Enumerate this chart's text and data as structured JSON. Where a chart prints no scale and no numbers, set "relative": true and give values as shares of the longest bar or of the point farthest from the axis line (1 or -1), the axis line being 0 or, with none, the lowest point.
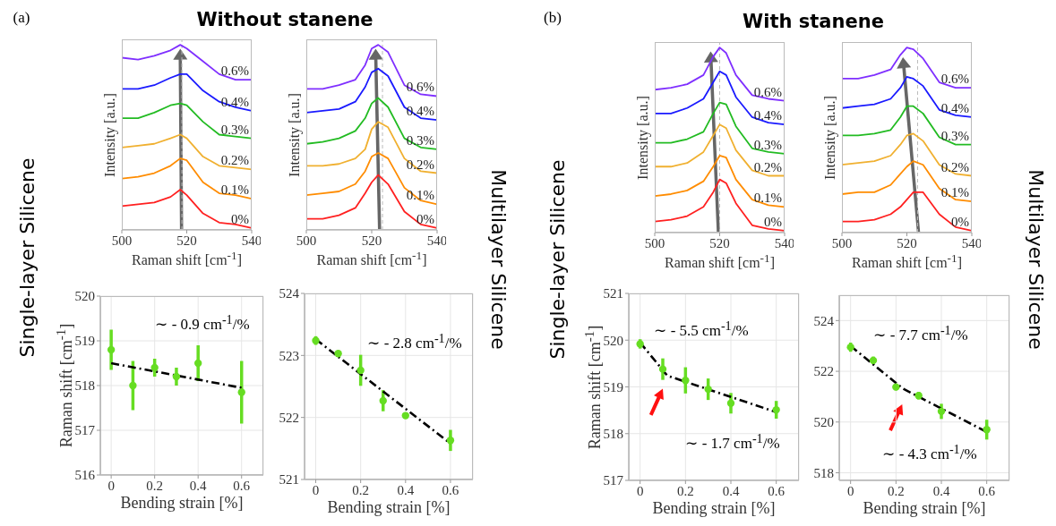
{
  "chart_data": [
    {
      "type": "line",
      "title": "Without stanene",
      "annotations": [
        "(a)"
      ],
      "xlabel": "Raman shift [cm$^{-1}$]",
      "ylabel": "Intensity [a.u.]",
      "relative": true,
      "xlim": [
        500,
        540
      ],
      "xticks": [
        500,
        520,
        540
      ],
      "x": [
        500,
        505,
        510,
        515,
        518,
        520,
        525,
        530,
        535,
        540
      ],
      "ref_lines": [
        {
          "axis": "x",
          "value": 518.5,
          "color": "#bbbbbb",
          "line_style": "dashed"
        }
      ],
      "series": [
        {
          "name": "0%",
          "color": "#ff2020",
          "values": [
            0.12,
            0.13,
            0.14,
            0.17,
            0.21,
            0.18,
            0.08,
            0.03,
            0.02,
            0
          ]
        },
        {
          "name": "0.1%",
          "color": "#ff8c00",
          "values": [
            0.27,
            0.28,
            0.3,
            0.34,
            0.38,
            0.37,
            0.25,
            0.19,
            0.18,
            0.16
          ]
        },
        {
          "name": "0.2%",
          "color": "#f0b030",
          "values": [
            0.44,
            0.45,
            0.46,
            0.49,
            0.51,
            0.49,
            0.39,
            0.34,
            0.33,
            0.32
          ]
        },
        {
          "name": "0.3%",
          "color": "#22bb22",
          "values": [
            0.6,
            0.6,
            0.63,
            0.67,
            0.68,
            0.67,
            0.58,
            0.51,
            0.5,
            0.49
          ]
        },
        {
          "name": "0.4%",
          "color": "#1a1aff",
          "values": [
            0.76,
            0.76,
            0.78,
            0.82,
            0.84,
            0.84,
            0.75,
            0.69,
            0.66,
            0.64
          ]
        },
        {
          "name": "0.6%",
          "color": "#7f2fff",
          "values": [
            0.93,
            0.92,
            0.94,
            0.97,
            1.0,
            0.98,
            0.91,
            0.84,
            0.81,
            0.81
          ]
        }
      ]
    },
    {
      "type": "line",
      "xlabel": "Raman shift [cm$^{-1}$]",
      "ylabel": "Intensity [a.u.]",
      "relative": true,
      "xlim": [
        500,
        540
      ],
      "xticks": [
        500,
        520,
        540
      ],
      "x": [
        500,
        505,
        510,
        515,
        518,
        520,
        522,
        525,
        530,
        535,
        540
      ],
      "ref_lines": [
        {
          "axis": "x",
          "value": 523.3,
          "color": "#bbbbbb",
          "line_style": "dashed"
        }
      ],
      "series": [
        {
          "name": "0%",
          "color": "#ff2020",
          "values": [
            0.05,
            0.05,
            0.07,
            0.11,
            0.19,
            0.25,
            0.29,
            0.24,
            0.09,
            0.02,
            0.0
          ]
        },
        {
          "name": "0.1%",
          "color": "#ff8c00",
          "values": [
            0.18,
            0.19,
            0.2,
            0.24,
            0.31,
            0.39,
            0.41,
            0.38,
            0.22,
            0.15,
            0.13
          ]
        },
        {
          "name": "0.2%",
          "color": "#f0b030",
          "values": [
            0.34,
            0.34,
            0.35,
            0.38,
            0.43,
            0.54,
            0.58,
            0.55,
            0.38,
            0.31,
            0.3
          ]
        },
        {
          "name": "0.3%",
          "color": "#22bb22",
          "values": [
            0.46,
            0.47,
            0.49,
            0.53,
            0.6,
            0.68,
            0.71,
            0.66,
            0.49,
            0.44,
            0.43
          ]
        },
        {
          "name": "0.4%",
          "color": "#1a1aff",
          "values": [
            0.63,
            0.64,
            0.65,
            0.69,
            0.77,
            0.85,
            0.87,
            0.83,
            0.66,
            0.6,
            0.59
          ]
        },
        {
          "name": "0.6%",
          "color": "#7f2fff",
          "values": [
            0.76,
            0.76,
            0.78,
            0.81,
            0.89,
            0.98,
            1.0,
            0.96,
            0.78,
            0.73,
            0.72
          ]
        }
      ]
    },
    {
      "type": "line",
      "title": "With stanene",
      "annotations": [
        "(b)"
      ],
      "xlabel": "Raman shift [cm$^{-1}$]",
      "ylabel": "Intensity [a.u.]",
      "relative": true,
      "xlim": [
        500,
        540
      ],
      "xticks": [
        500,
        520,
        540
      ],
      "x": [
        500,
        505,
        510,
        515,
        518,
        520,
        522,
        525,
        530,
        535,
        540
      ],
      "ref_lines": [
        {
          "axis": "x",
          "value": 520,
          "color": "#bbbbbb",
          "line_style": "dashed"
        }
      ],
      "series": [
        {
          "name": "0%",
          "color": "#ff2020",
          "values": [
            0.05,
            0.06,
            0.08,
            0.13,
            0.21,
            0.28,
            0.26,
            0.15,
            0.03,
            0.01,
            0
          ]
        },
        {
          "name": "0.1%",
          "color": "#ff8c00",
          "values": [
            0.19,
            0.2,
            0.22,
            0.27,
            0.35,
            0.41,
            0.4,
            0.28,
            0.17,
            0.14,
            0.13
          ]
        },
        {
          "name": "0.2%",
          "color": "#f0b030",
          "values": [
            0.35,
            0.35,
            0.37,
            0.43,
            0.52,
            0.58,
            0.56,
            0.44,
            0.33,
            0.3,
            0.3
          ]
        },
        {
          "name": "0.3%",
          "color": "#22bb22",
          "values": [
            0.48,
            0.48,
            0.5,
            0.54,
            0.64,
            0.7,
            0.69,
            0.57,
            0.45,
            0.43,
            0.42
          ]
        },
        {
          "name": "0.4%",
          "color": "#1a1aff",
          "values": [
            0.64,
            0.64,
            0.67,
            0.72,
            0.81,
            0.87,
            0.85,
            0.73,
            0.62,
            0.59,
            0.58
          ]
        },
        {
          "name": "0.6%",
          "color": "#7f2fff",
          "values": [
            0.77,
            0.78,
            0.8,
            0.85,
            0.95,
            1.0,
            0.97,
            0.85,
            0.74,
            0.72,
            0.71
          ]
        }
      ]
    },
    {
      "type": "line",
      "xlabel": "Raman shift [cm$^{-1}$]",
      "ylabel": "Intensity [a.u.]",
      "relative": true,
      "xlim": [
        500,
        540
      ],
      "xticks": [
        500,
        520,
        540
      ],
      "x": [
        500,
        505,
        510,
        515,
        518,
        520,
        522,
        525,
        530,
        535,
        540
      ],
      "ref_lines": [
        {
          "axis": "x",
          "value": 523.3,
          "color": "#bbbbbb",
          "line_style": "dashed"
        }
      ],
      "series": [
        {
          "name": "0%",
          "color": "#ff2020",
          "values": [
            0.05,
            0.05,
            0.06,
            0.09,
            0.13,
            0.17,
            0.21,
            0.21,
            0.09,
            0.02,
            0
          ]
        },
        {
          "name": "0.1%",
          "color": "#ff8c00",
          "values": [
            0.2,
            0.21,
            0.21,
            0.25,
            0.31,
            0.35,
            0.38,
            0.36,
            0.23,
            0.17,
            0.16
          ]
        },
        {
          "name": "0.2%",
          "color": "#f0b030",
          "values": [
            0.36,
            0.37,
            0.38,
            0.41,
            0.47,
            0.52,
            0.53,
            0.49,
            0.36,
            0.31,
            0.3
          ]
        },
        {
          "name": "0.3%",
          "color": "#22bb22",
          "values": [
            0.52,
            0.52,
            0.53,
            0.55,
            0.62,
            0.68,
            0.68,
            0.64,
            0.51,
            0.47,
            0.47
          ]
        },
        {
          "name": "0.4%",
          "color": "#1a1aff",
          "values": [
            0.67,
            0.68,
            0.69,
            0.72,
            0.78,
            0.84,
            0.83,
            0.79,
            0.66,
            0.63,
            0.62
          ]
        },
        {
          "name": "0.6%",
          "color": "#7f2fff",
          "values": [
            0.83,
            0.83,
            0.85,
            0.88,
            0.96,
            1.0,
            0.99,
            0.94,
            0.81,
            0.78,
            0.78
          ]
        }
      ]
    },
    {
      "type": "scatter",
      "annotations": [
        "Single-layer Silicene",
        "∼ - 0.9 cm$^{-1}$/%"
      ],
      "xlabel": "Bending strain [%]",
      "ylabel": "Raman shift [cm$^{-1}$]",
      "xlim": [
        -0.05,
        0.7
      ],
      "xticks": [
        0,
        0.2,
        0.4,
        0.6
      ],
      "ylim": [
        516,
        520
      ],
      "yticks": [
        516,
        517,
        518,
        519,
        520
      ],
      "grid": true,
      "x": [
        0,
        0.1,
        0.2,
        0.3,
        0.4,
        0.6
      ],
      "series": [
        {
          "marker": "circle",
          "color": "#66dd22",
          "values": [
            518.8,
            518.0,
            518.4,
            518.2,
            518.5,
            517.85
          ],
          "errors": [
            0.45,
            0.55,
            0.2,
            0.2,
            0.4,
            0.7
          ]
        },
        {
          "type": "line",
          "color": "#000000",
          "line_style": "dashed",
          "x": [
            0,
            0.6
          ],
          "values": [
            518.5,
            517.95
          ]
        }
      ]
    },
    {
      "type": "scatter",
      "annotations": [
        "Multilayer Silicene",
        "∼ - 2.8 cm$^{-1}$/%"
      ],
      "xlabel": "Bending strain [%]",
      "xlim": [
        -0.05,
        0.7
      ],
      "xticks": [
        0,
        0.2,
        0.4,
        0.6
      ],
      "ylim": [
        521,
        524
      ],
      "yticks": [
        521,
        522,
        523,
        524
      ],
      "grid": true,
      "x": [
        0,
        0.1,
        0.2,
        0.3,
        0.4,
        0.6
      ],
      "series": [
        {
          "marker": "circle",
          "color": "#66dd22",
          "values": [
            523.24,
            523.03,
            522.76,
            522.27,
            522.03,
            521.63
          ],
          "errors": [
            0.07,
            0.05,
            0.25,
            0.17,
            0.05,
            0.17
          ]
        },
        {
          "type": "line",
          "color": "#000000",
          "line_style": "dashed",
          "x": [
            0,
            0.6
          ],
          "values": [
            523.26,
            521.58
          ]
        }
      ]
    },
    {
      "type": "scatter",
      "annotations": [
        "Single-layer Silicene",
        "∼ - 5.5 cm$^{-1}$/%",
        "∼ - 1.7 cm$^{-1}$/%"
      ],
      "xlabel": "Bending strain [%]",
      "ylabel": "Raman shift [cm$^{-1}$]",
      "xlim": [
        -0.05,
        0.7
      ],
      "xticks": [
        0,
        0.2,
        0.4,
        0.6
      ],
      "ylim": [
        517,
        521
      ],
      "yticks": [
        517,
        518,
        519,
        520,
        521
      ],
      "grid": true,
      "x": [
        0,
        0.1,
        0.2,
        0.3,
        0.4,
        0.6
      ],
      "series": [
        {
          "marker": "circle",
          "color": "#66dd22",
          "values": [
            519.92,
            519.38,
            519.14,
            518.95,
            518.65,
            518.51
          ],
          "errors": [
            0.1,
            0.23,
            0.28,
            0.23,
            0.22,
            0.19
          ]
        },
        {
          "type": "line",
          "color": "#000000",
          "line_style": "dashed",
          "x": [
            0,
            0.12,
            0.6
          ],
          "values": [
            519.95,
            519.24,
            518.46
          ]
        }
      ]
    },
    {
      "type": "scatter",
      "annotations": [
        "Multilayer Silicene",
        "∼ - 7.7 cm$^{-1}$/%",
        "∼ - 4.3 cm$^{-1}$/%"
      ],
      "xlabel": "Bending strain [%]",
      "xlim": [
        -0.05,
        0.7
      ],
      "xticks": [
        0,
        0.2,
        0.4,
        0.6
      ],
      "ylim": [
        517.7,
        525
      ],
      "yticks": [
        518,
        520,
        522,
        524
      ],
      "grid": true,
      "x": [
        0,
        0.1,
        0.2,
        0.3,
        0.4,
        0.6
      ],
      "series": [
        {
          "marker": "circle",
          "color": "#66dd22",
          "values": [
            522.95,
            522.43,
            521.38,
            521.04,
            520.42,
            519.7
          ],
          "errors": [
            0.18,
            0.15,
            0.13,
            0.15,
            0.3,
            0.39
          ]
        },
        {
          "type": "line",
          "color": "#000000",
          "line_style": "dashed",
          "x": [
            0,
            0.232,
            0.6
          ],
          "values": [
            523.0,
            521.31,
            519.61
          ]
        }
      ]
    }
  ]
}
